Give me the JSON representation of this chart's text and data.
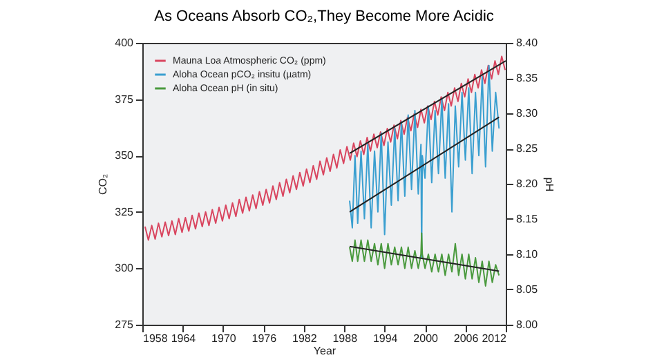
{
  "chart_data": {
    "type": "line",
    "title": "As Oceans Absorb CO₂,They Become More Acidic",
    "xlabel": "Year",
    "ylabel": "CO₂",
    "y2label": "pH",
    "xlim": [
      1958,
      2012
    ],
    "xticks": [
      1958,
      1964,
      1970,
      1976,
      1982,
      1988,
      1994,
      2000,
      2006,
      2012
    ],
    "ylim": [
      275,
      400
    ],
    "yticks": [
      275,
      300,
      325,
      350,
      375,
      400
    ],
    "y2lim": [
      8.0,
      8.4
    ],
    "y2ticks": [
      {
        "value": 8.0,
        "label": "8.00"
      },
      8.05,
      {
        "value": 8.1,
        "label": "8.10"
      },
      8.15,
      {
        "value": 8.2,
        "label": "8.20"
      },
      8.25,
      {
        "value": 8.3,
        "label": "8.30"
      },
      8.35,
      {
        "value": 8.4,
        "label": "8.40"
      }
    ],
    "grid": false,
    "legend": "top left",
    "series": [
      {
        "name": "Mauna Loa Atmospheric CO₂ (ppm)",
        "color": "#d9455f",
        "x": [
          1958.4,
          1958.9,
          1959.4,
          1959.9,
          1960.4,
          1960.9,
          1961.4,
          1961.9,
          1962.4,
          1962.9,
          1963.4,
          1963.9,
          1964.4,
          1964.9,
          1965.4,
          1965.9,
          1966.4,
          1966.9,
          1967.4,
          1967.9,
          1968.4,
          1968.9,
          1969.4,
          1969.9,
          1970.4,
          1970.9,
          1971.4,
          1971.9,
          1972.4,
          1972.9,
          1973.4,
          1973.9,
          1974.4,
          1974.9,
          1975.4,
          1975.9,
          1976.4,
          1976.9,
          1977.4,
          1977.9,
          1978.4,
          1978.9,
          1979.4,
          1979.9,
          1980.4,
          1980.9,
          1981.4,
          1981.9,
          1982.4,
          1982.9,
          1983.4,
          1983.9,
          1984.4,
          1984.9,
          1985.4,
          1985.9,
          1986.4,
          1986.9,
          1987.4,
          1987.9,
          1988.4,
          1988.9,
          1989.4,
          1989.9,
          1990.4,
          1990.9,
          1991.4,
          1991.9,
          1992.4,
          1992.9,
          1993.4,
          1993.9,
          1994.4,
          1994.9,
          1995.4,
          1995.9,
          1996.4,
          1996.9,
          1997.4,
          1997.9,
          1998.4,
          1998.9,
          1999.4,
          1999.9,
          2000.4,
          2000.9,
          2001.4,
          2001.9,
          2002.4,
          2002.9,
          2003.4,
          2003.9,
          2004.4,
          2004.9,
          2005.4,
          2005.9,
          2006.4,
          2006.9,
          2007.4,
          2007.9,
          2008.4,
          2008.9,
          2009.4,
          2009.9,
          2010.4,
          2010.9,
          2011.4,
          2011.9
        ],
        "values": [
          318.5,
          312.5,
          319,
          313,
          320,
          314,
          320.5,
          314.5,
          321,
          315,
          322,
          316,
          322.5,
          316.5,
          323.5,
          317.5,
          324.5,
          318.5,
          325,
          319,
          326,
          320,
          327,
          321,
          328,
          322,
          329,
          323,
          330.5,
          324.5,
          331.5,
          325.5,
          332.5,
          326.5,
          334,
          328,
          335,
          329,
          336.5,
          330.5,
          338,
          332,
          339.5,
          333.5,
          341,
          335,
          342.5,
          336.5,
          344,
          338,
          345.5,
          339.5,
          347.5,
          341.5,
          349,
          343,
          350.5,
          344.5,
          352.5,
          346.5,
          354,
          348,
          355.5,
          349.5,
          356.5,
          350.5,
          358,
          352,
          359.5,
          353.5,
          360.5,
          354.5,
          362,
          356,
          363.5,
          357.5,
          365.5,
          359.5,
          367,
          361,
          368.5,
          362.5,
          370.5,
          364.5,
          372,
          366,
          374,
          368,
          376,
          370,
          378,
          372,
          380,
          374,
          382,
          376,
          384,
          378,
          386,
          380,
          388,
          382,
          390,
          384,
          392,
          386,
          394,
          388
        ]
      },
      {
        "name": "Aloha Ocean pCO₂ insitu (µatm)",
        "color": "#3a9fd0",
        "x": [
          1988.8,
          1989.2,
          1989.6,
          1990.0,
          1990.5,
          1991.0,
          1991.5,
          1992.0,
          1992.5,
          1993.0,
          1993.5,
          1994.0,
          1994.5,
          1995.0,
          1995.5,
          1996.0,
          1996.5,
          1997.0,
          1997.5,
          1998.0,
          1998.5,
          1999.0,
          1999.4,
          1999.5,
          1999.6,
          2000.0,
          2000.5,
          2001.0,
          2001.5,
          2002.0,
          2002.5,
          2003.0,
          2003.5,
          2004.0,
          2004.5,
          2005.0,
          2005.5,
          2006.0,
          2006.5,
          2007.0,
          2007.5,
          2008.0,
          2008.5,
          2009.0,
          2009.5,
          2010.0,
          2010.5,
          2011.0
        ],
        "values": [
          330,
          318,
          350,
          320,
          352,
          322,
          355,
          318,
          352,
          325,
          360,
          315,
          356,
          328,
          362,
          330,
          365,
          332,
          368,
          335,
          370,
          333,
          355,
          305,
          350,
          340,
          372,
          338,
          370,
          342,
          375,
          340,
          373,
          325,
          372,
          345,
          378,
          348,
          380,
          342,
          378,
          350,
          385,
          345,
          390,
          352,
          378,
          362
        ]
      },
      {
        "name": "Aloha Ocean pH (in situ)",
        "color": "#4a9a3e",
        "axis": "y2",
        "x": [
          1988.8,
          1989.2,
          1989.6,
          1990.0,
          1990.5,
          1991.0,
          1991.5,
          1992.0,
          1992.5,
          1993.0,
          1993.5,
          1994.0,
          1994.5,
          1995.0,
          1995.5,
          1996.0,
          1996.5,
          1997.0,
          1997.5,
          1998.0,
          1998.5,
          1999.0,
          1999.4,
          1999.5,
          1999.6,
          2000.0,
          2000.5,
          2001.0,
          2001.5,
          2002.0,
          2002.5,
          2003.0,
          2003.5,
          2004.0,
          2004.5,
          2005.0,
          2005.5,
          2006.0,
          2006.5,
          2007.0,
          2007.5,
          2008.0,
          2008.5,
          2009.0,
          2009.5,
          2010.0,
          2010.5,
          2011.0
        ],
        "values": [
          8.11,
          8.09,
          8.12,
          8.09,
          8.12,
          8.09,
          8.12,
          8.09,
          8.115,
          8.085,
          8.115,
          8.08,
          8.115,
          8.085,
          8.11,
          8.085,
          8.11,
          8.08,
          8.11,
          8.08,
          8.105,
          8.08,
          8.1,
          8.13,
          8.1,
          8.08,
          8.1,
          8.075,
          8.1,
          8.075,
          8.1,
          8.07,
          8.1,
          8.075,
          8.115,
          8.07,
          8.1,
          8.065,
          8.1,
          8.065,
          8.095,
          8.06,
          8.09,
          8.055,
          8.09,
          8.06,
          8.085,
          8.07
        ]
      },
      {
        "type": "line",
        "color": "#222222",
        "x": [
          1988.8,
          2012
        ],
        "values": [
          351,
          392
        ]
      },
      {
        "type": "line",
        "color": "#222222",
        "x": [
          1988.8,
          2011
        ],
        "values": [
          325,
          367
        ]
      },
      {
        "type": "line",
        "color": "#222222",
        "axis": "y2",
        "x": [
          1988.8,
          2011
        ],
        "values": [
          8.111,
          8.076
        ]
      }
    ]
  }
}
